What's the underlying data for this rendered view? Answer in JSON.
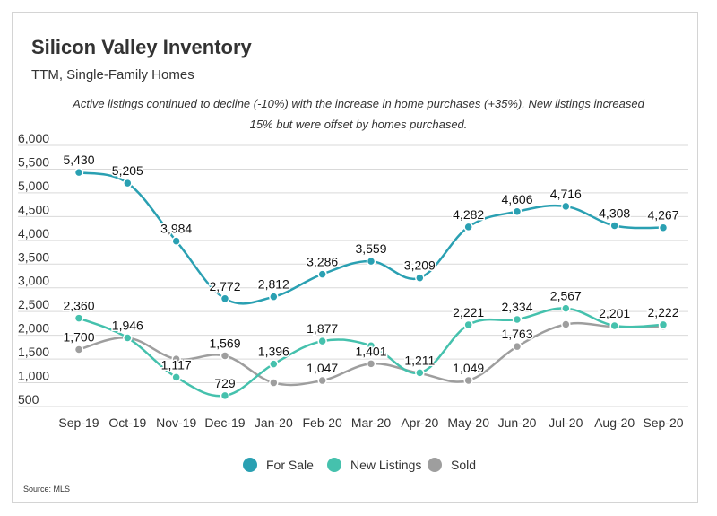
{
  "header": {
    "title": "Silicon Valley Inventory",
    "subtitle": "TTM, Single-Family Homes",
    "note": "Active listings continued to decline (-10%) with the increase in home purchases (+35%). New listings increased 15% but were offset by homes purchased."
  },
  "footer": {
    "source": "Source: MLS"
  },
  "chart_data": {
    "type": "line",
    "categories": [
      "Sep-19",
      "Oct-19",
      "Nov-19",
      "Dec-19",
      "Jan-20",
      "Feb-20",
      "Mar-20",
      "Apr-20",
      "May-20",
      "Jun-20",
      "Jul-20",
      "Aug-20",
      "Sep-20"
    ],
    "y_ticks": [
      "6,000",
      "5,500",
      "5,000",
      "4,500",
      "4,000",
      "3,500",
      "3,000",
      "2,500",
      "2,000",
      "1,500",
      "1,000",
      "500"
    ],
    "ylim": [
      500,
      6000
    ],
    "grid": true,
    "legend": "bottom",
    "series": [
      {
        "name": "For Sale",
        "color": "#2aa0b2",
        "values": [
          5430,
          5205,
          3984,
          2772,
          2812,
          3286,
          3559,
          3209,
          4282,
          4606,
          4716,
          4308,
          4267
        ],
        "labels": [
          "5,430",
          "5,205",
          "3,984",
          "2,772",
          "2,812",
          "3,286",
          "3,559",
          "3,209",
          "4,282",
          "4,606",
          "4,716",
          "4,308",
          "4,267"
        ]
      },
      {
        "name": "New Listings",
        "color": "#45c1ad",
        "values": [
          2360,
          1946,
          1117,
          729,
          1396,
          1877,
          1780,
          1211,
          2221,
          2334,
          2567,
          2201,
          2222
        ],
        "labels": [
          "2,360",
          "1,946",
          "1,117",
          "729",
          "1,396",
          "1,877",
          "",
          "1,211",
          "2,221",
          "2,334",
          "2,567",
          "2,201",
          "2,222"
        ]
      },
      {
        "name": "Sold",
        "color": "#9e9e9e",
        "values": [
          1700,
          1946,
          1500,
          1569,
          1000,
          1047,
          1401,
          1200,
          1049,
          1763,
          2230,
          2180,
          2190
        ],
        "labels": [
          "1,700",
          "",
          "",
          "1,569",
          "",
          "1,047",
          "1,401",
          "",
          "1,049",
          "1,763",
          "",
          "",
          ""
        ]
      }
    ]
  }
}
